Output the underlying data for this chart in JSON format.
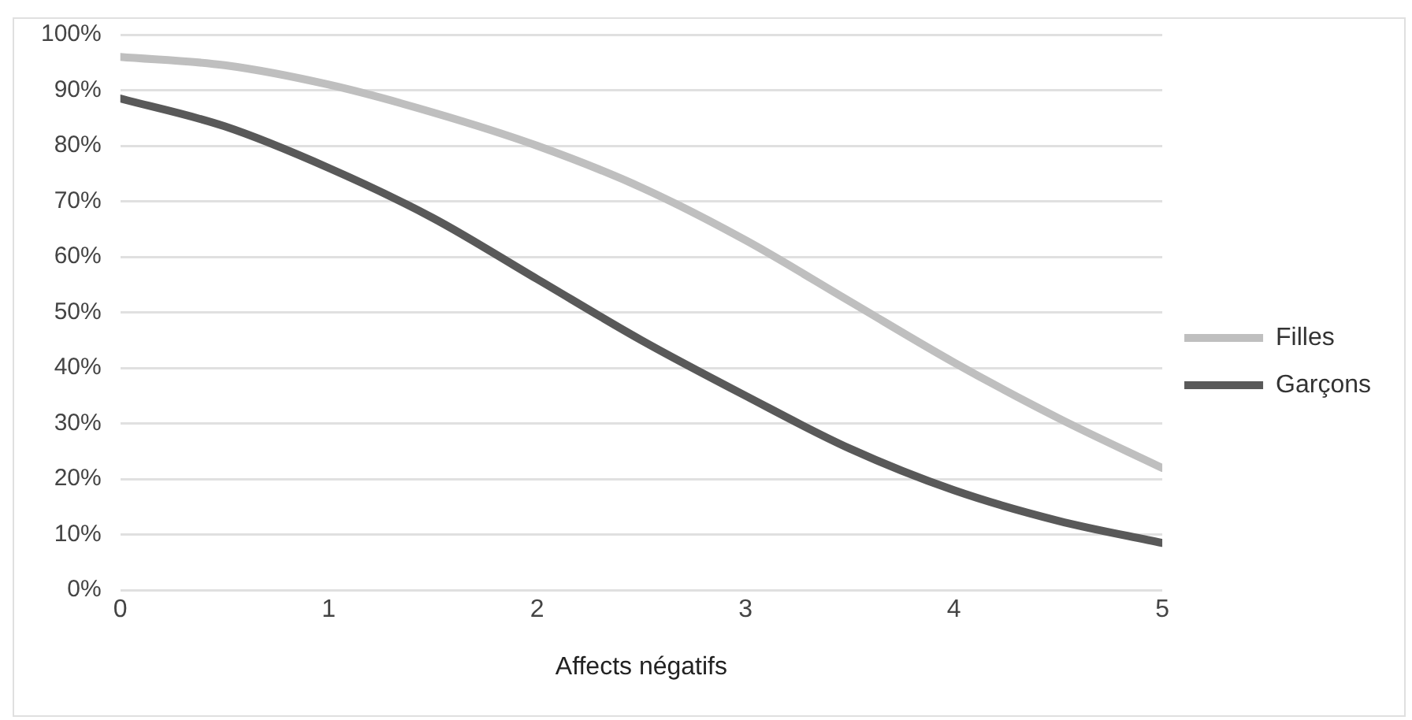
{
  "chart_data": {
    "type": "line",
    "xlabel": "Affects négatifs",
    "x": [
      0,
      0.5,
      1,
      1.5,
      2,
      2.5,
      3,
      3.5,
      4,
      4.5,
      5
    ],
    "series": [
      {
        "name": "Filles",
        "color": "#bfbfbf",
        "values": [
          96,
          94.5,
          91,
          86,
          80,
          72.5,
          63,
          52,
          41,
          31,
          22
        ]
      },
      {
        "name": "Garçons",
        "color": "#595959",
        "values": [
          88.5,
          83.5,
          76,
          67,
          56,
          45,
          35,
          25.5,
          18,
          12.5,
          8.5
        ]
      }
    ],
    "xlim": [
      0,
      5
    ],
    "xticks": [
      0,
      1,
      2,
      3,
      4,
      5
    ],
    "ylim": [
      0,
      100
    ],
    "yticks": [
      {
        "value": 0,
        "label": "0%"
      },
      {
        "value": 10,
        "label": "10%"
      },
      {
        "value": 20,
        "label": "20%"
      },
      {
        "value": 30,
        "label": "30%"
      },
      {
        "value": 40,
        "label": "40%"
      },
      {
        "value": 50,
        "label": "50%"
      },
      {
        "value": 60,
        "label": "60%"
      },
      {
        "value": 70,
        "label": "70%"
      },
      {
        "value": 80,
        "label": "80%"
      },
      {
        "value": 90,
        "label": "90%"
      },
      {
        "value": 100,
        "label": "100%"
      }
    ],
    "grid": "y",
    "legend": "right",
    "marker": "none",
    "line_style": "solid"
  }
}
